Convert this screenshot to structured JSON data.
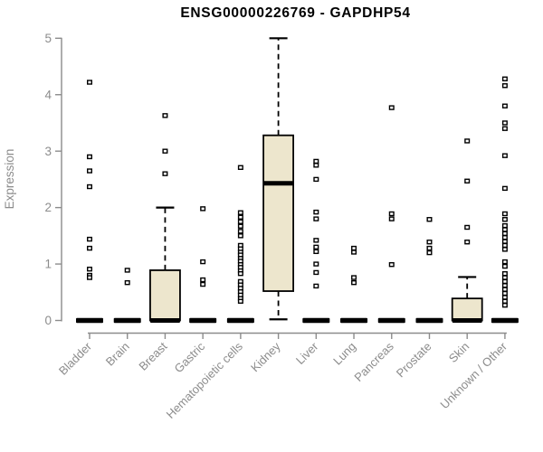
{
  "style": {
    "background": "#FFFFFF",
    "box_fill": "#EDE6CD",
    "box_stroke": "#000000",
    "median_color": "#000000",
    "outlier_color": "#000000",
    "axis_color": "#8C8C8C",
    "label_color": "#8C8C8C",
    "title_color": "#000000"
  },
  "chart_data": {
    "type": "boxplot",
    "title": "ENSG00000226769 - GAPDHP54",
    "xlabel": "",
    "ylabel": "Expression",
    "ylim": [
      0,
      5
    ],
    "yticks": [
      0,
      1,
      2,
      3,
      4,
      5
    ],
    "grid": false,
    "legend": false,
    "categories": [
      "Bladder",
      "Brain",
      "Breast",
      "Gastric",
      "Hematopoietic cells",
      "Kidney",
      "Liver",
      "Lung",
      "Pancreas",
      "Prostate",
      "Skin",
      "Unknown / Other"
    ],
    "boxes": [
      {
        "category": "Bladder",
        "q1": 0,
        "median": 0,
        "q3": 0,
        "whisker_low": 0,
        "whisker_high": 0,
        "outliers": [
          4.22,
          2.9,
          2.65,
          2.37,
          1.44,
          1.28,
          0.91,
          0.8,
          0.76
        ]
      },
      {
        "category": "Brain",
        "q1": 0,
        "median": 0,
        "q3": 0,
        "whisker_low": 0,
        "whisker_high": 0,
        "outliers": [
          0.89,
          0.67
        ]
      },
      {
        "category": "Breast",
        "q1": 0,
        "median": 0,
        "q3": 0.89,
        "whisker_low": 0,
        "whisker_high": 2.0,
        "outliers": [
          3.63,
          3.0,
          2.6
        ]
      },
      {
        "category": "Gastric",
        "q1": 0,
        "median": 0,
        "q3": 0,
        "whisker_low": 0,
        "whisker_high": 0,
        "outliers": [
          1.98,
          1.04,
          0.72,
          0.64
        ]
      },
      {
        "category": "Hematopoietic cells",
        "q1": 0,
        "median": 0,
        "q3": 0,
        "whisker_low": 0,
        "whisker_high": 0,
        "outliers": [
          2.71,
          1.91,
          1.83,
          1.75,
          1.67,
          1.58,
          1.5,
          1.33,
          1.27,
          1.21,
          1.16,
          1.1,
          1.05,
          0.99,
          0.94,
          0.88,
          0.83,
          0.69,
          0.63,
          0.57,
          0.51,
          0.45,
          0.39,
          0.34
        ]
      },
      {
        "category": "Kidney",
        "q1": 0.52,
        "median": 2.43,
        "q3": 3.28,
        "whisker_low": 0.02,
        "whisker_high": 5.0,
        "outliers": []
      },
      {
        "category": "Liver",
        "q1": 0,
        "median": 0,
        "q3": 0,
        "whisker_low": 0,
        "whisker_high": 0,
        "outliers": [
          2.82,
          2.75,
          2.5,
          1.92,
          1.8,
          1.42,
          1.3,
          1.22,
          1.0,
          0.85,
          0.61
        ]
      },
      {
        "category": "Lung",
        "q1": 0,
        "median": 0,
        "q3": 0,
        "whisker_low": 0,
        "whisker_high": 0,
        "outliers": [
          1.28,
          1.21,
          0.76,
          0.67
        ]
      },
      {
        "category": "Pancreas",
        "q1": 0,
        "median": 0,
        "q3": 0,
        "whisker_low": 0,
        "whisker_high": 0,
        "outliers": [
          3.77,
          1.89,
          1.8,
          0.99
        ]
      },
      {
        "category": "Prostate",
        "q1": 0,
        "median": 0,
        "q3": 0,
        "whisker_low": 0,
        "whisker_high": 0,
        "outliers": [
          1.79,
          1.39,
          1.28,
          1.2
        ]
      },
      {
        "category": "Skin",
        "q1": 0,
        "median": 0,
        "q3": 0.39,
        "whisker_low": 0,
        "whisker_high": 0.77,
        "outliers": [
          3.18,
          2.47,
          1.65,
          1.39
        ]
      },
      {
        "category": "Unknown / Other",
        "q1": 0,
        "median": 0,
        "q3": 0,
        "whisker_low": 0,
        "whisker_high": 0,
        "outliers": [
          4.28,
          4.16,
          3.8,
          3.5,
          3.4,
          2.92,
          2.34,
          1.89,
          1.79,
          1.68,
          1.61,
          1.54,
          1.47,
          1.4,
          1.33,
          1.26,
          1.04,
          0.96,
          0.83,
          0.76,
          0.69,
          0.62,
          0.55,
          0.48,
          0.41,
          0.34,
          0.27
        ]
      }
    ]
  }
}
